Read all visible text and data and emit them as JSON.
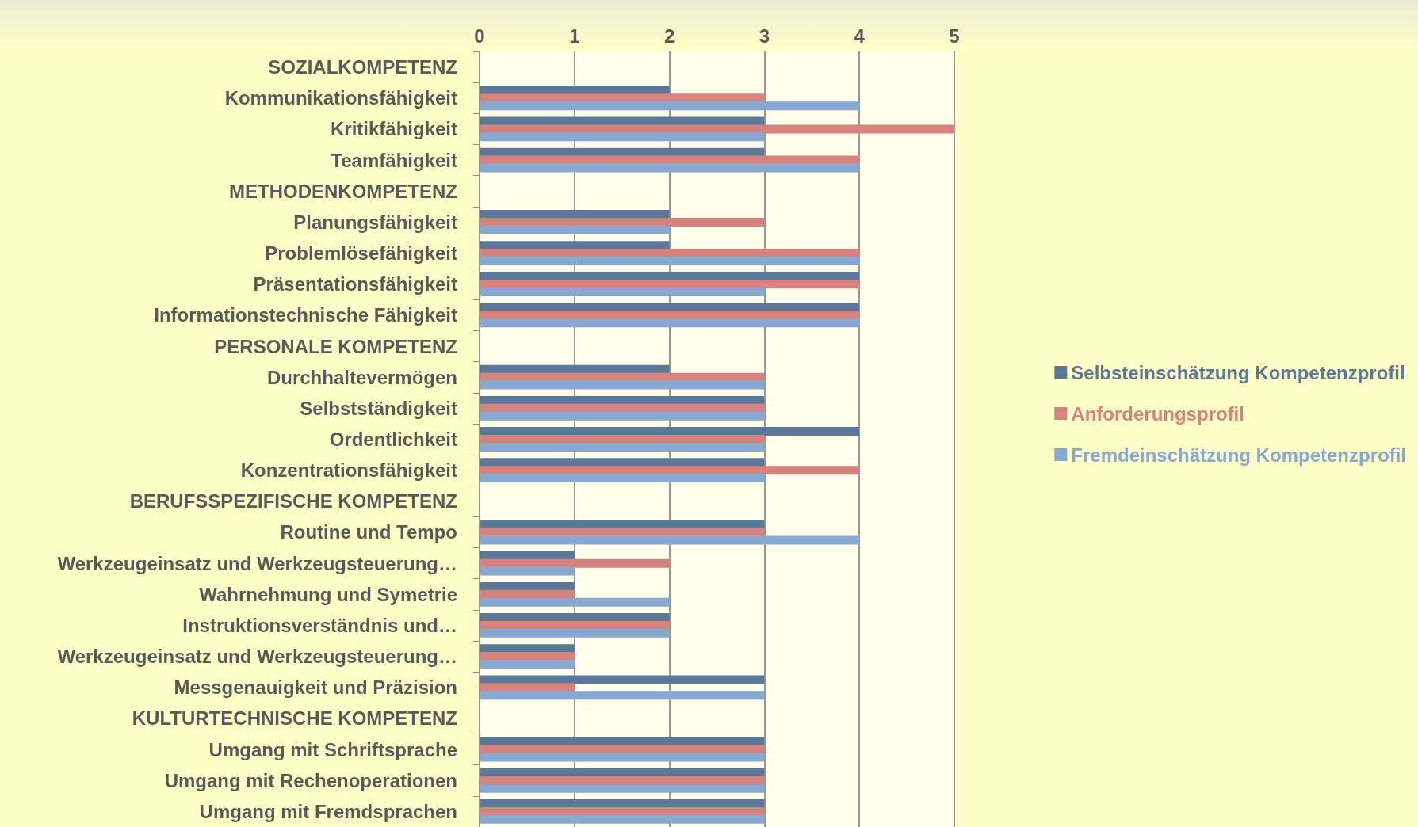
{
  "chart_data": {
    "type": "bar",
    "orientation": "horizontal",
    "categories": [
      "SOZIALKOMPETENZ",
      "Kommunikationsfähigkeit",
      "Kritikfähigkeit",
      "Teamfähigkeit",
      "METHODENKOMPETENZ",
      "Planungsfähigkeit",
      "Problemlösefähigkeit",
      "Präsentationsfähigkeit",
      "Informationstechnische Fähigkeit",
      "PERSONALE KOMPETENZ",
      "Durchhaltevermögen",
      "Selbstständigkeit",
      "Ordentlichkeit",
      "Konzentrationsfähigkeit",
      "BERUFSSPEZIFISCHE KOMPETENZ",
      "Routine und Tempo",
      "Werkzeugeinsatz und Werkzeugsteuerung…",
      "Wahrnehmung und Symetrie",
      "Instruktionsverständnis und…",
      "Werkzeugeinsatz und Werkzeugsteuerung…",
      "Messgenauigkeit und Präzision",
      "KULTURTECHNISCHE KOMPETENZ",
      "Umgang mit Schriftsprache",
      "Umgang mit Rechenoperationen",
      "Umgang mit Fremdsprachen"
    ],
    "series": [
      {
        "name": "Selbsteinschätzung Kompetenzprofil",
        "color": "#5b7899",
        "values": [
          null,
          2,
          3,
          3,
          null,
          2,
          2,
          4,
          4,
          null,
          2,
          3,
          4,
          3,
          null,
          3,
          1,
          1,
          2,
          1,
          3,
          null,
          3,
          3,
          3
        ]
      },
      {
        "name": "Anforderungsprofil",
        "color": "#d7827c",
        "values": [
          null,
          3,
          5,
          4,
          null,
          3,
          4,
          4,
          4,
          null,
          3,
          3,
          3,
          4,
          null,
          3,
          2,
          1,
          2,
          1,
          1,
          null,
          3,
          3,
          3
        ]
      },
      {
        "name": "Fremdeinschätzung Kompetenzprofil",
        "color": "#87a8d0",
        "values": [
          null,
          4,
          3,
          4,
          null,
          2,
          4,
          3,
          4,
          null,
          3,
          3,
          3,
          3,
          null,
          4,
          1,
          2,
          2,
          1,
          3,
          null,
          3,
          3,
          3
        ]
      }
    ],
    "xlim": [
      0,
      5
    ],
    "xticks": [
      0,
      1,
      2,
      3,
      4,
      5
    ],
    "grid": "x",
    "legend": "right"
  }
}
